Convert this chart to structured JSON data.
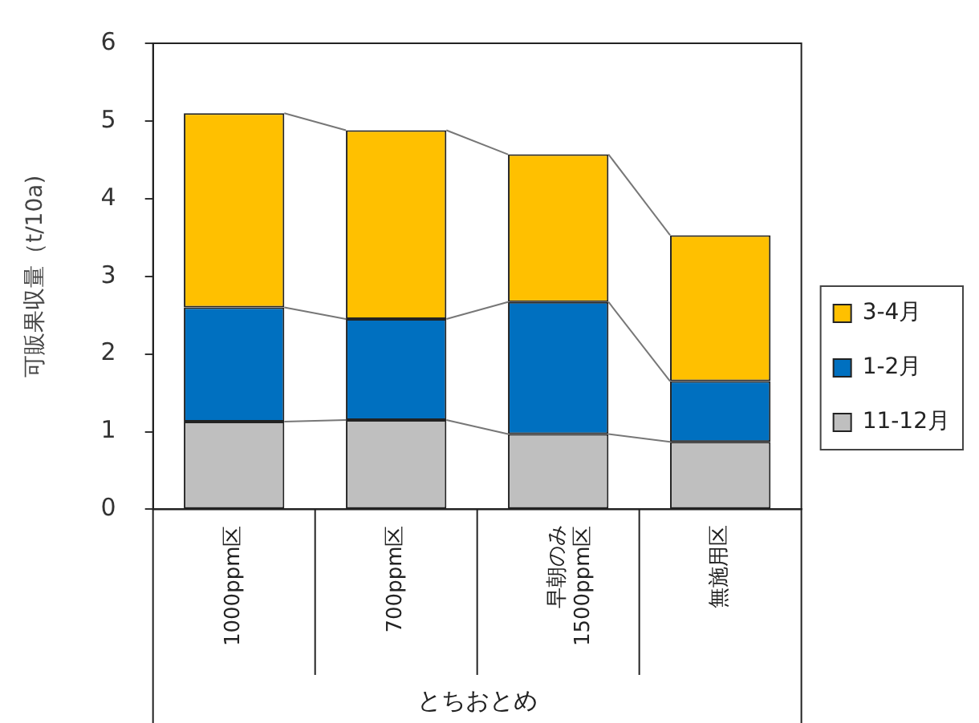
{
  "chart_data": {
    "type": "bar",
    "stacked": true,
    "xlabel": "とちおとめ",
    "ylabel": "可販果収量（t/10a)",
    "categories": [
      "1000ppm区",
      "700ppm区",
      "早朝のみ\n1500ppm区",
      "無施用区"
    ],
    "series": [
      {
        "name": "11-12月",
        "color": "#bfbfbf",
        "values": [
          1.13,
          1.15,
          0.97,
          0.87
        ]
      },
      {
        "name": "1-2月",
        "color": "#0070c0",
        "values": [
          1.47,
          1.3,
          1.7,
          0.78
        ]
      },
      {
        "name": "3-4月",
        "color": "#ffc000",
        "values": [
          2.5,
          2.43,
          1.9,
          1.88
        ]
      }
    ],
    "ylim": [
      0,
      6
    ],
    "yticks": [
      0,
      1,
      2,
      3,
      4,
      5,
      6
    ],
    "grid": false,
    "legend": "right"
  }
}
